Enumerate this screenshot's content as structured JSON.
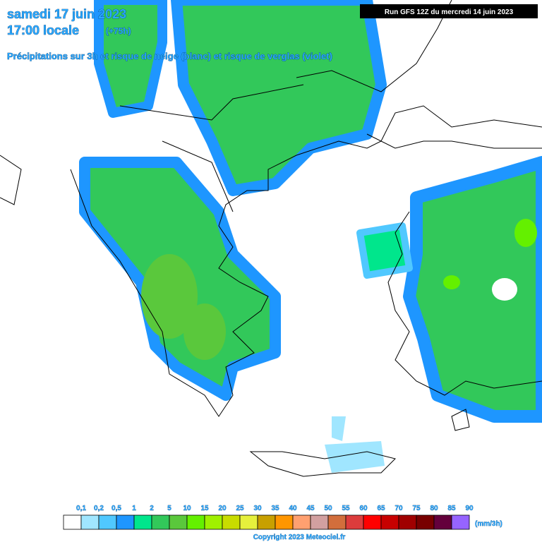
{
  "header": {
    "date": "samedi 17 juin 2023",
    "time": "17:00 locale",
    "lead": "(+75h)",
    "subtitle": "Précipitations sur 3h et risque de neige (blanc) et risque de verglas (violet)",
    "run": "Run GFS 12Z du mercredi 14 juin 2023"
  },
  "legend": {
    "labels": [
      "0,1",
      "0,2",
      "0,5",
      "1",
      "2",
      "5",
      "10",
      "15",
      "20",
      "25",
      "30",
      "35",
      "40",
      "45",
      "50",
      "55",
      "60",
      "65",
      "70",
      "75",
      "80",
      "85",
      "90"
    ],
    "colors": [
      "#ffffff",
      "#a0e6ff",
      "#50c8ff",
      "#1e96ff",
      "#00e68c",
      "#32c85a",
      "#5ac83c",
      "#64f000",
      "#a0f000",
      "#c8dc00",
      "#e6f03c",
      "#c8a000",
      "#ff9600",
      "#ffa070",
      "#d2a0a0",
      "#d26e3c",
      "#dc3c3c",
      "#ff0000",
      "#c80000",
      "#a00000",
      "#780000",
      "#64003c",
      "#9664ff"
    ],
    "unit": "(mm/3h)"
  },
  "footer": {
    "copyright": "Copyright 2023 Meteociel.fr"
  }
}
